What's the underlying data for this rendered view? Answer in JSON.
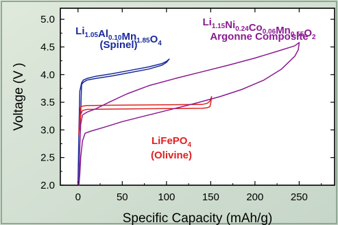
{
  "chart_data": {
    "type": "line",
    "title": "",
    "xlabel": "Specific Capacity (mAh/g)",
    "ylabel": "Voltage (V )",
    "xlim": [
      -20,
      290
    ],
    "ylim": [
      2.0,
      5.2
    ],
    "xticks": [
      0,
      50,
      100,
      150,
      200,
      250
    ],
    "yticks": [
      2.0,
      2.5,
      3.0,
      3.5,
      4.0,
      4.5,
      5.0
    ],
    "xtick_labels": [
      "0",
      "50",
      "100",
      "150",
      "200",
      "250"
    ],
    "ytick_labels": [
      "2.0",
      "2.5",
      "3.0",
      "3.5",
      "4.0",
      "4.5",
      "5.0"
    ],
    "grid": false,
    "legend": "none",
    "annotations": [
      {
        "id": "spinel",
        "color": "#1a2a9a",
        "line1": [
          {
            "t": "Li",
            "sub": false
          },
          {
            "t": "1.05",
            "sub": true
          },
          {
            "t": "Al",
            "sub": false
          },
          {
            "t": "0.10",
            "sub": true
          },
          {
            "t": "Mn",
            "sub": false
          },
          {
            "t": "1.85",
            "sub": true
          },
          {
            "t": "O",
            "sub": false
          },
          {
            "t": "4",
            "sub": true
          }
        ],
        "line2": "(Spinel)"
      },
      {
        "id": "argonne",
        "color": "#8a1a90",
        "line1": [
          {
            "t": "Li",
            "sub": false
          },
          {
            "t": "1.15",
            "sub": true
          },
          {
            "t": "Ni",
            "sub": false
          },
          {
            "t": "0.24",
            "sub": true
          },
          {
            "t": "Co",
            "sub": false
          },
          {
            "t": "0.06",
            "sub": true
          },
          {
            "t": "Mn",
            "sub": false
          },
          {
            "t": "0.55",
            "sub": true
          },
          {
            "t": "O",
            "sub": false
          },
          {
            "t": "2",
            "sub": true
          }
        ],
        "line2": "Argonne Composite"
      },
      {
        "id": "olivine",
        "color": "#e02020",
        "line1": [
          {
            "t": "LiFePO",
            "sub": false
          },
          {
            "t": "4",
            "sub": true
          }
        ],
        "line2": "(Olivine)"
      }
    ],
    "series": [
      {
        "id": "spinel-charge",
        "color": "#1a2a9a",
        "x": [
          0,
          1,
          2,
          4,
          6,
          10,
          20,
          40,
          60,
          80,
          95,
          100,
          103
        ],
        "y": [
          2.05,
          3.0,
          3.7,
          3.85,
          3.9,
          3.93,
          3.97,
          4.02,
          4.08,
          4.14,
          4.2,
          4.24,
          4.28
        ]
      },
      {
        "id": "spinel-discharge",
        "color": "#1a2a9a",
        "x": [
          103,
          100,
          95,
          80,
          60,
          40,
          20,
          10,
          6,
          4,
          3,
          2
        ],
        "y": [
          4.28,
          4.22,
          4.17,
          4.1,
          4.04,
          3.98,
          3.93,
          3.9,
          3.86,
          3.82,
          3.3,
          3.0
        ]
      },
      {
        "id": "olivine-charge",
        "color": "#e02020",
        "x": [
          1,
          2,
          3,
          5,
          10,
          30,
          60,
          100,
          140,
          146,
          149,
          150,
          151
        ],
        "y": [
          2.95,
          3.3,
          3.42,
          3.43,
          3.44,
          3.445,
          3.45,
          3.455,
          3.46,
          3.48,
          3.52,
          3.56,
          3.6
        ]
      },
      {
        "id": "olivine-discharge",
        "color": "#e02020",
        "x": [
          151,
          150,
          149,
          146,
          140,
          100,
          60,
          30,
          10,
          5,
          3,
          2,
          1
        ],
        "y": [
          3.6,
          3.48,
          3.42,
          3.4,
          3.39,
          3.385,
          3.38,
          3.375,
          3.37,
          3.35,
          3.28,
          3.1,
          2.92
        ]
      },
      {
        "id": "argonne-charge",
        "color": "#8a1a90",
        "x": [
          1,
          2,
          3,
          5,
          10,
          20,
          35,
          55,
          80,
          110,
          140,
          170,
          200,
          225,
          245,
          250
        ],
        "y": [
          2.0,
          2.7,
          3.1,
          3.27,
          3.32,
          3.38,
          3.5,
          3.65,
          3.8,
          3.93,
          4.05,
          4.17,
          4.3,
          4.42,
          4.52,
          4.58
        ]
      },
      {
        "id": "argonne-discharge",
        "color": "#8a1a90",
        "x": [
          250,
          249,
          245,
          230,
          210,
          185,
          160,
          130,
          100,
          75,
          50,
          30,
          15,
          8,
          5,
          3,
          2,
          1
        ],
        "y": [
          4.58,
          4.45,
          4.33,
          4.1,
          3.9,
          3.73,
          3.6,
          3.47,
          3.35,
          3.25,
          3.15,
          3.05,
          2.98,
          2.94,
          2.8,
          2.5,
          2.2,
          2.0
        ]
      }
    ]
  }
}
